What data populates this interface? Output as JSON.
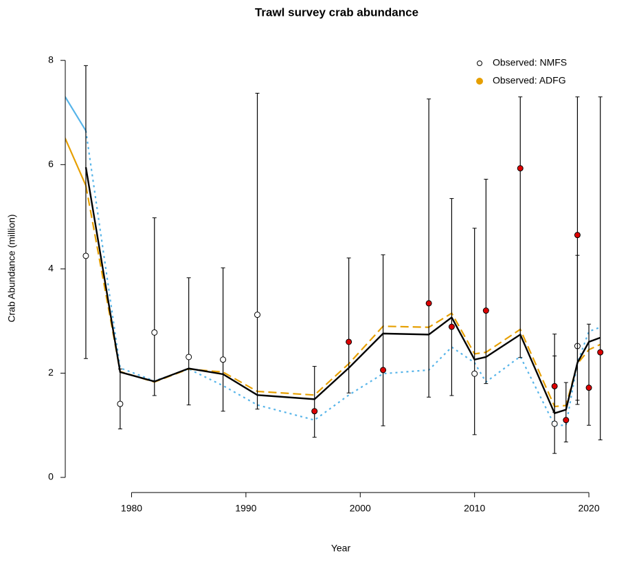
{
  "chart_data": {
    "type": "line",
    "title": "Trawl survey crab abundance",
    "x_label": "Year",
    "y_label": "Crab Abundance (million)",
    "xlim": [
      1974.2,
      2022.4
    ],
    "ylim": [
      -0.29,
      8.34
    ],
    "xticks": [
      1980,
      1990,
      2000,
      2010,
      2020
    ],
    "yticks": [
      0,
      2,
      4,
      6,
      8
    ],
    "legend": "top-right",
    "series": [
      {
        "color": "#56b4e9",
        "style": "solid",
        "x": [
          1974,
          1976
        ],
        "values": [
          7.37,
          6.65
        ]
      },
      {
        "color": "#e69f00",
        "style": "solid",
        "x": [
          1974,
          1976
        ],
        "values": [
          6.6,
          5.6
        ]
      },
      {
        "color": "#56b4e9",
        "style": "dotted",
        "x": [
          1976,
          1979,
          1982,
          1985,
          1988,
          1991,
          1996,
          1999,
          2002,
          2006,
          2008,
          2010,
          2011,
          2014,
          2017,
          2018,
          2019,
          2020,
          2021
        ],
        "values": [
          6.65,
          2.1,
          1.85,
          2.08,
          1.76,
          1.39,
          1.1,
          1.58,
          1.99,
          2.06,
          2.5,
          2.2,
          1.83,
          2.32,
          1.0,
          1.0,
          2.2,
          2.8,
          2.88
        ]
      },
      {
        "color": "#e69f00",
        "style": "dashed",
        "x": [
          1976,
          1979,
          1982,
          1985,
          1988,
          1991,
          1996,
          1999,
          2002,
          2006,
          2008,
          2010,
          2011,
          2014,
          2017,
          2018,
          2019,
          2020,
          2021
        ],
        "values": [
          5.6,
          2.03,
          1.83,
          2.08,
          2.02,
          1.65,
          1.58,
          2.18,
          2.9,
          2.88,
          3.15,
          2.37,
          2.4,
          2.84,
          1.36,
          1.38,
          2.18,
          2.45,
          2.55
        ]
      },
      {
        "color": "#000000",
        "style": "solid",
        "x": [
          1976,
          1979,
          1982,
          1985,
          1988,
          1991,
          1996,
          1999,
          2002,
          2006,
          2008,
          2010,
          2011,
          2014,
          2017,
          2018,
          2019,
          2020,
          2021
        ],
        "values": [
          5.95,
          2.02,
          1.84,
          2.09,
          1.98,
          1.58,
          1.5,
          2.1,
          2.76,
          2.74,
          3.07,
          2.26,
          2.31,
          2.74,
          1.23,
          1.3,
          2.2,
          2.6,
          2.68
        ]
      },
      {
        "name": "Observed: NMFS",
        "style": "points",
        "color": "#ffffff",
        "x": [
          1976,
          1979,
          1982,
          1985,
          1988,
          1991,
          2010,
          2017,
          2019
        ],
        "values": [
          4.25,
          1.41,
          2.78,
          2.31,
          2.26,
          3.12,
          1.99,
          1.03,
          2.52
        ],
        "lower": [
          2.28,
          0.93,
          1.57,
          1.39,
          1.27,
          1.31,
          0.82,
          0.46,
          1.48
        ],
        "upper": [
          7.9,
          2.08,
          4.98,
          3.83,
          4.02,
          7.37,
          4.78,
          2.33,
          4.26
        ]
      },
      {
        "name": "Observed: ADFG",
        "style": "points",
        "color": "#e69f00",
        "point_color": "#dd0000",
        "x": [
          1996,
          1999,
          2002,
          2006,
          2008,
          2011,
          2014,
          2017,
          2018,
          2019,
          2020,
          2021
        ],
        "values": [
          1.27,
          2.6,
          2.06,
          3.34,
          2.89,
          3.2,
          5.93,
          1.75,
          1.1,
          4.65,
          1.72,
          2.4
        ],
        "lower": [
          0.77,
          1.62,
          0.99,
          1.54,
          1.57,
          1.8,
          2.3,
          1.25,
          0.68,
          1.4,
          1.0,
          0.72
        ],
        "upper": [
          2.13,
          4.21,
          4.27,
          7.26,
          5.35,
          5.72,
          7.3,
          2.75,
          1.82,
          7.3,
          2.94,
          7.3
        ]
      }
    ]
  }
}
